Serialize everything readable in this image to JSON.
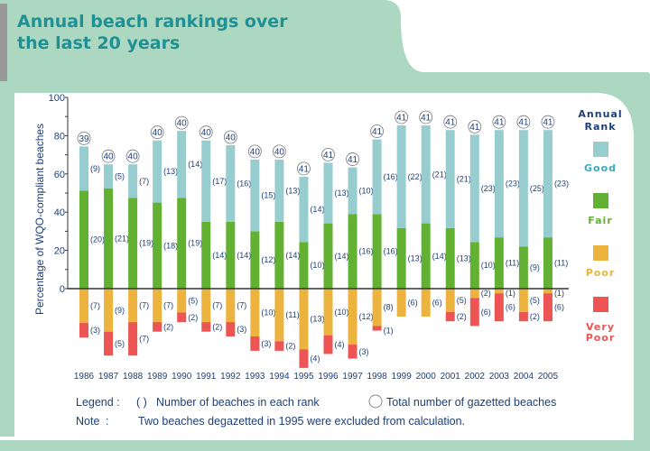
{
  "title_line1": "Annual beach rankings over",
  "title_line2": "the last 20 years",
  "legend": {
    "heading_line1": "Annual",
    "heading_line2": "Rank",
    "good": "Good",
    "fair": "Fair",
    "poor": "Poor",
    "very_line1": "Very",
    "very_line2": "Poor"
  },
  "footer": {
    "legend_label": "Legend :",
    "paren_symbol": "(  )",
    "paren_text": "Number of beaches in each rank",
    "circle_text": "Total number of gazetted beaches",
    "note_label": "Note",
    "note_colon": ":",
    "note_text": "Two beaches degazetted in 1995 were excluded from calculation."
  },
  "colors": {
    "good": "#98cdd0",
    "fair": "#63b132",
    "poor": "#ecb43f",
    "very_poor": "#ec5554",
    "text": "#1d3f7a",
    "bg": "#acd8c2"
  },
  "chart_data": {
    "type": "bar",
    "stacked": "diverging",
    "ylabel": "Percentage of WQO-compliant beaches",
    "ylim": [
      0,
      100
    ],
    "yticks": [
      "0",
      "20",
      "40",
      "60",
      "80",
      "100"
    ],
    "categories": [
      "1986",
      "1987",
      "1988",
      "1989",
      "1990",
      "1991",
      "1992",
      "1993",
      "1994",
      "1995",
      "1996",
      "1997",
      "1998",
      "1999",
      "2000",
      "2001",
      "2002",
      "2003",
      "2004",
      "2005"
    ],
    "totals": [
      39,
      40,
      40,
      40,
      40,
      40,
      40,
      40,
      40,
      41,
      41,
      41,
      41,
      41,
      41,
      41,
      41,
      41,
      41,
      41
    ],
    "series": [
      {
        "name": "Good",
        "values": [
          9,
          5,
          7,
          13,
          14,
          17,
          16,
          15,
          13,
          14,
          13,
          10,
          16,
          22,
          21,
          21,
          23,
          23,
          25,
          23
        ]
      },
      {
        "name": "Fair",
        "values": [
          20,
          21,
          19,
          18,
          19,
          14,
          14,
          12,
          14,
          10,
          14,
          16,
          16,
          13,
          14,
          13,
          10,
          11,
          9,
          11
        ]
      },
      {
        "name": "Poor",
        "values": [
          7,
          9,
          7,
          7,
          5,
          7,
          7,
          10,
          11,
          13,
          10,
          12,
          8,
          6,
          6,
          5,
          2,
          1,
          5,
          1
        ]
      },
      {
        "name": "Very Poor",
        "values": [
          3,
          5,
          7,
          2,
          2,
          2,
          3,
          3,
          2,
          4,
          4,
          3,
          1,
          0,
          0,
          2,
          6,
          6,
          2,
          6
        ]
      }
    ]
  }
}
